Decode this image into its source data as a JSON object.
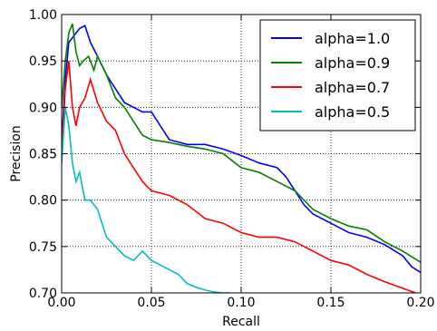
{
  "chart_data": {
    "type": "line",
    "xlabel": "Recall",
    "ylabel": "Precision",
    "xlim": [
      0.0,
      0.2
    ],
    "ylim": [
      0.7,
      1.0
    ],
    "xticks": [
      0.0,
      0.05,
      0.1,
      0.15,
      0.2
    ],
    "xtick_labels": [
      "0.00",
      "0.05",
      "0.10",
      "0.15",
      "0.20"
    ],
    "yticks": [
      0.7,
      0.75,
      0.8,
      0.85,
      0.9,
      0.95,
      1.0
    ],
    "ytick_labels": [
      "0.70",
      "0.75",
      "0.80",
      "0.85",
      "0.90",
      "0.95",
      "1.00"
    ],
    "grid": true,
    "legend_position": "top-right",
    "series": [
      {
        "name": "alpha=1.0",
        "color": "#0000ff",
        "x": [
          0.0,
          0.002,
          0.004,
          0.006,
          0.008,
          0.01,
          0.013,
          0.016,
          0.02,
          0.025,
          0.03,
          0.035,
          0.04,
          0.045,
          0.05,
          0.055,
          0.06,
          0.07,
          0.08,
          0.09,
          0.1,
          0.11,
          0.12,
          0.125,
          0.13,
          0.135,
          0.14,
          0.15,
          0.16,
          0.17,
          0.18,
          0.19,
          0.195,
          0.2
        ],
        "y": [
          0.86,
          0.93,
          0.97,
          0.975,
          0.98,
          0.985,
          0.988,
          0.97,
          0.955,
          0.935,
          0.92,
          0.905,
          0.9,
          0.895,
          0.895,
          0.88,
          0.865,
          0.86,
          0.86,
          0.855,
          0.848,
          0.84,
          0.835,
          0.825,
          0.81,
          0.795,
          0.785,
          0.775,
          0.765,
          0.76,
          0.752,
          0.74,
          0.728,
          0.722
        ]
      },
      {
        "name": "alpha=0.9",
        "color": "#008000",
        "x": [
          0.0,
          0.002,
          0.004,
          0.006,
          0.008,
          0.01,
          0.012,
          0.015,
          0.018,
          0.02,
          0.025,
          0.03,
          0.035,
          0.04,
          0.045,
          0.05,
          0.06,
          0.07,
          0.08,
          0.09,
          0.1,
          0.11,
          0.12,
          0.13,
          0.14,
          0.15,
          0.16,
          0.17,
          0.18,
          0.19,
          0.2
        ],
        "y": [
          0.9,
          0.95,
          0.98,
          0.99,
          0.96,
          0.945,
          0.95,
          0.955,
          0.94,
          0.955,
          0.935,
          0.91,
          0.9,
          0.885,
          0.87,
          0.865,
          0.862,
          0.858,
          0.855,
          0.85,
          0.835,
          0.83,
          0.82,
          0.81,
          0.79,
          0.78,
          0.772,
          0.768,
          0.755,
          0.745,
          0.733
        ]
      },
      {
        "name": "alpha=0.7",
        "color": "#ff0000",
        "x": [
          0.0,
          0.002,
          0.004,
          0.006,
          0.008,
          0.01,
          0.013,
          0.016,
          0.02,
          0.025,
          0.03,
          0.035,
          0.04,
          0.045,
          0.05,
          0.06,
          0.07,
          0.08,
          0.09,
          0.1,
          0.11,
          0.12,
          0.13,
          0.14,
          0.15,
          0.16,
          0.17,
          0.18,
          0.19,
          0.2
        ],
        "y": [
          0.85,
          0.92,
          0.95,
          0.9,
          0.88,
          0.9,
          0.91,
          0.93,
          0.905,
          0.885,
          0.875,
          0.85,
          0.835,
          0.82,
          0.81,
          0.805,
          0.795,
          0.78,
          0.775,
          0.765,
          0.76,
          0.76,
          0.755,
          0.745,
          0.735,
          0.73,
          0.72,
          0.712,
          0.705,
          0.698
        ]
      },
      {
        "name": "alpha=0.5",
        "color": "#00bfbf",
        "x": [
          0.0,
          0.002,
          0.004,
          0.006,
          0.008,
          0.01,
          0.013,
          0.016,
          0.02,
          0.025,
          0.03,
          0.035,
          0.04,
          0.045,
          0.05,
          0.055,
          0.06,
          0.065,
          0.07,
          0.075,
          0.08,
          0.085,
          0.09,
          0.094
        ],
        "y": [
          0.84,
          0.9,
          0.88,
          0.84,
          0.82,
          0.83,
          0.8,
          0.8,
          0.79,
          0.76,
          0.75,
          0.74,
          0.735,
          0.745,
          0.735,
          0.73,
          0.725,
          0.72,
          0.71,
          0.706,
          0.703,
          0.701,
          0.7,
          0.7
        ]
      }
    ]
  }
}
